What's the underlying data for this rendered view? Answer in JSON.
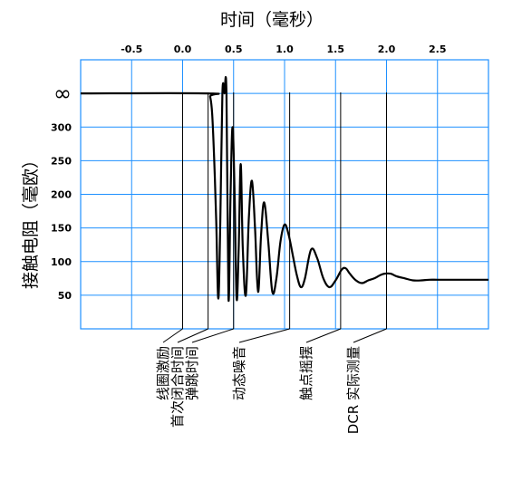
{
  "chart_data": {
    "type": "line",
    "title": "",
    "xlabel": "时间（毫秒）",
    "ylabel": "接触电阻（毫欧）",
    "xlim": [
      -1.0,
      3.0
    ],
    "x_ticks": [
      "-0.5",
      "0.0",
      "0.5",
      "1.0",
      "1.5",
      "2.0",
      "2.5"
    ],
    "x_tick_values": [
      -0.5,
      0.0,
      0.5,
      1.0,
      1.5,
      2.0,
      2.5
    ],
    "y_ticks": [
      "∞",
      "300",
      "250",
      "200",
      "150",
      "100",
      "50"
    ],
    "y_tick_values": [
      350,
      300,
      250,
      200,
      150,
      100,
      50
    ],
    "y_infinity_label": "∞",
    "ylim": [
      0,
      400
    ],
    "grid": true,
    "colors": {
      "grid": "#1e90ff",
      "line": "#000000",
      "marker": "#000000"
    },
    "series": [
      {
        "x": [
          -1.0,
          0.25,
          0.27,
          0.29,
          0.31,
          0.33,
          0.35,
          0.37,
          0.39,
          0.41,
          0.43,
          0.45,
          0.47,
          0.49,
          0.51,
          0.53,
          0.55,
          0.57,
          0.59,
          0.62,
          0.65,
          0.68,
          0.71,
          0.74,
          0.77,
          0.8,
          0.84,
          0.88,
          0.92,
          0.96,
          1.0,
          1.04,
          1.08,
          1.12,
          1.16,
          1.2,
          1.26,
          1.32,
          1.38,
          1.44,
          1.5,
          1.56,
          1.6,
          1.64,
          1.7,
          1.76,
          1.82,
          1.88,
          1.94,
          1.98,
          2.04,
          2.1,
          2.18,
          2.26,
          2.34,
          2.42,
          2.5,
          2.6,
          2.7,
          2.8,
          2.9,
          3.0
        ],
        "y": [
          350,
          350,
          345,
          320,
          250,
          160,
          45,
          160,
          350,
          350,
          350,
          45,
          200,
          300,
          200,
          45,
          120,
          245,
          120,
          50,
          165,
          220,
          150,
          55,
          140,
          188,
          130,
          55,
          75,
          130,
          155,
          140,
          110,
          80,
          62,
          75,
          118,
          105,
          75,
          62,
          72,
          88,
          90,
          82,
          72,
          68,
          72,
          75,
          80,
          82,
          82,
          78,
          75,
          72,
          72,
          73,
          73,
          73,
          73,
          73,
          73,
          73
        ]
      }
    ],
    "phase_markers": [
      {
        "label": "线圈激励",
        "x": 0.0
      },
      {
        "label": "首次闭合时间",
        "x": 0.25
      },
      {
        "label": "弹跳时间",
        "x": 0.5
      },
      {
        "label": "动态噪音",
        "x": 1.05
      },
      {
        "label": "触点摇摆",
        "x": 1.55
      },
      {
        "label": "DCR 实际测量",
        "x": 2.0
      }
    ]
  }
}
